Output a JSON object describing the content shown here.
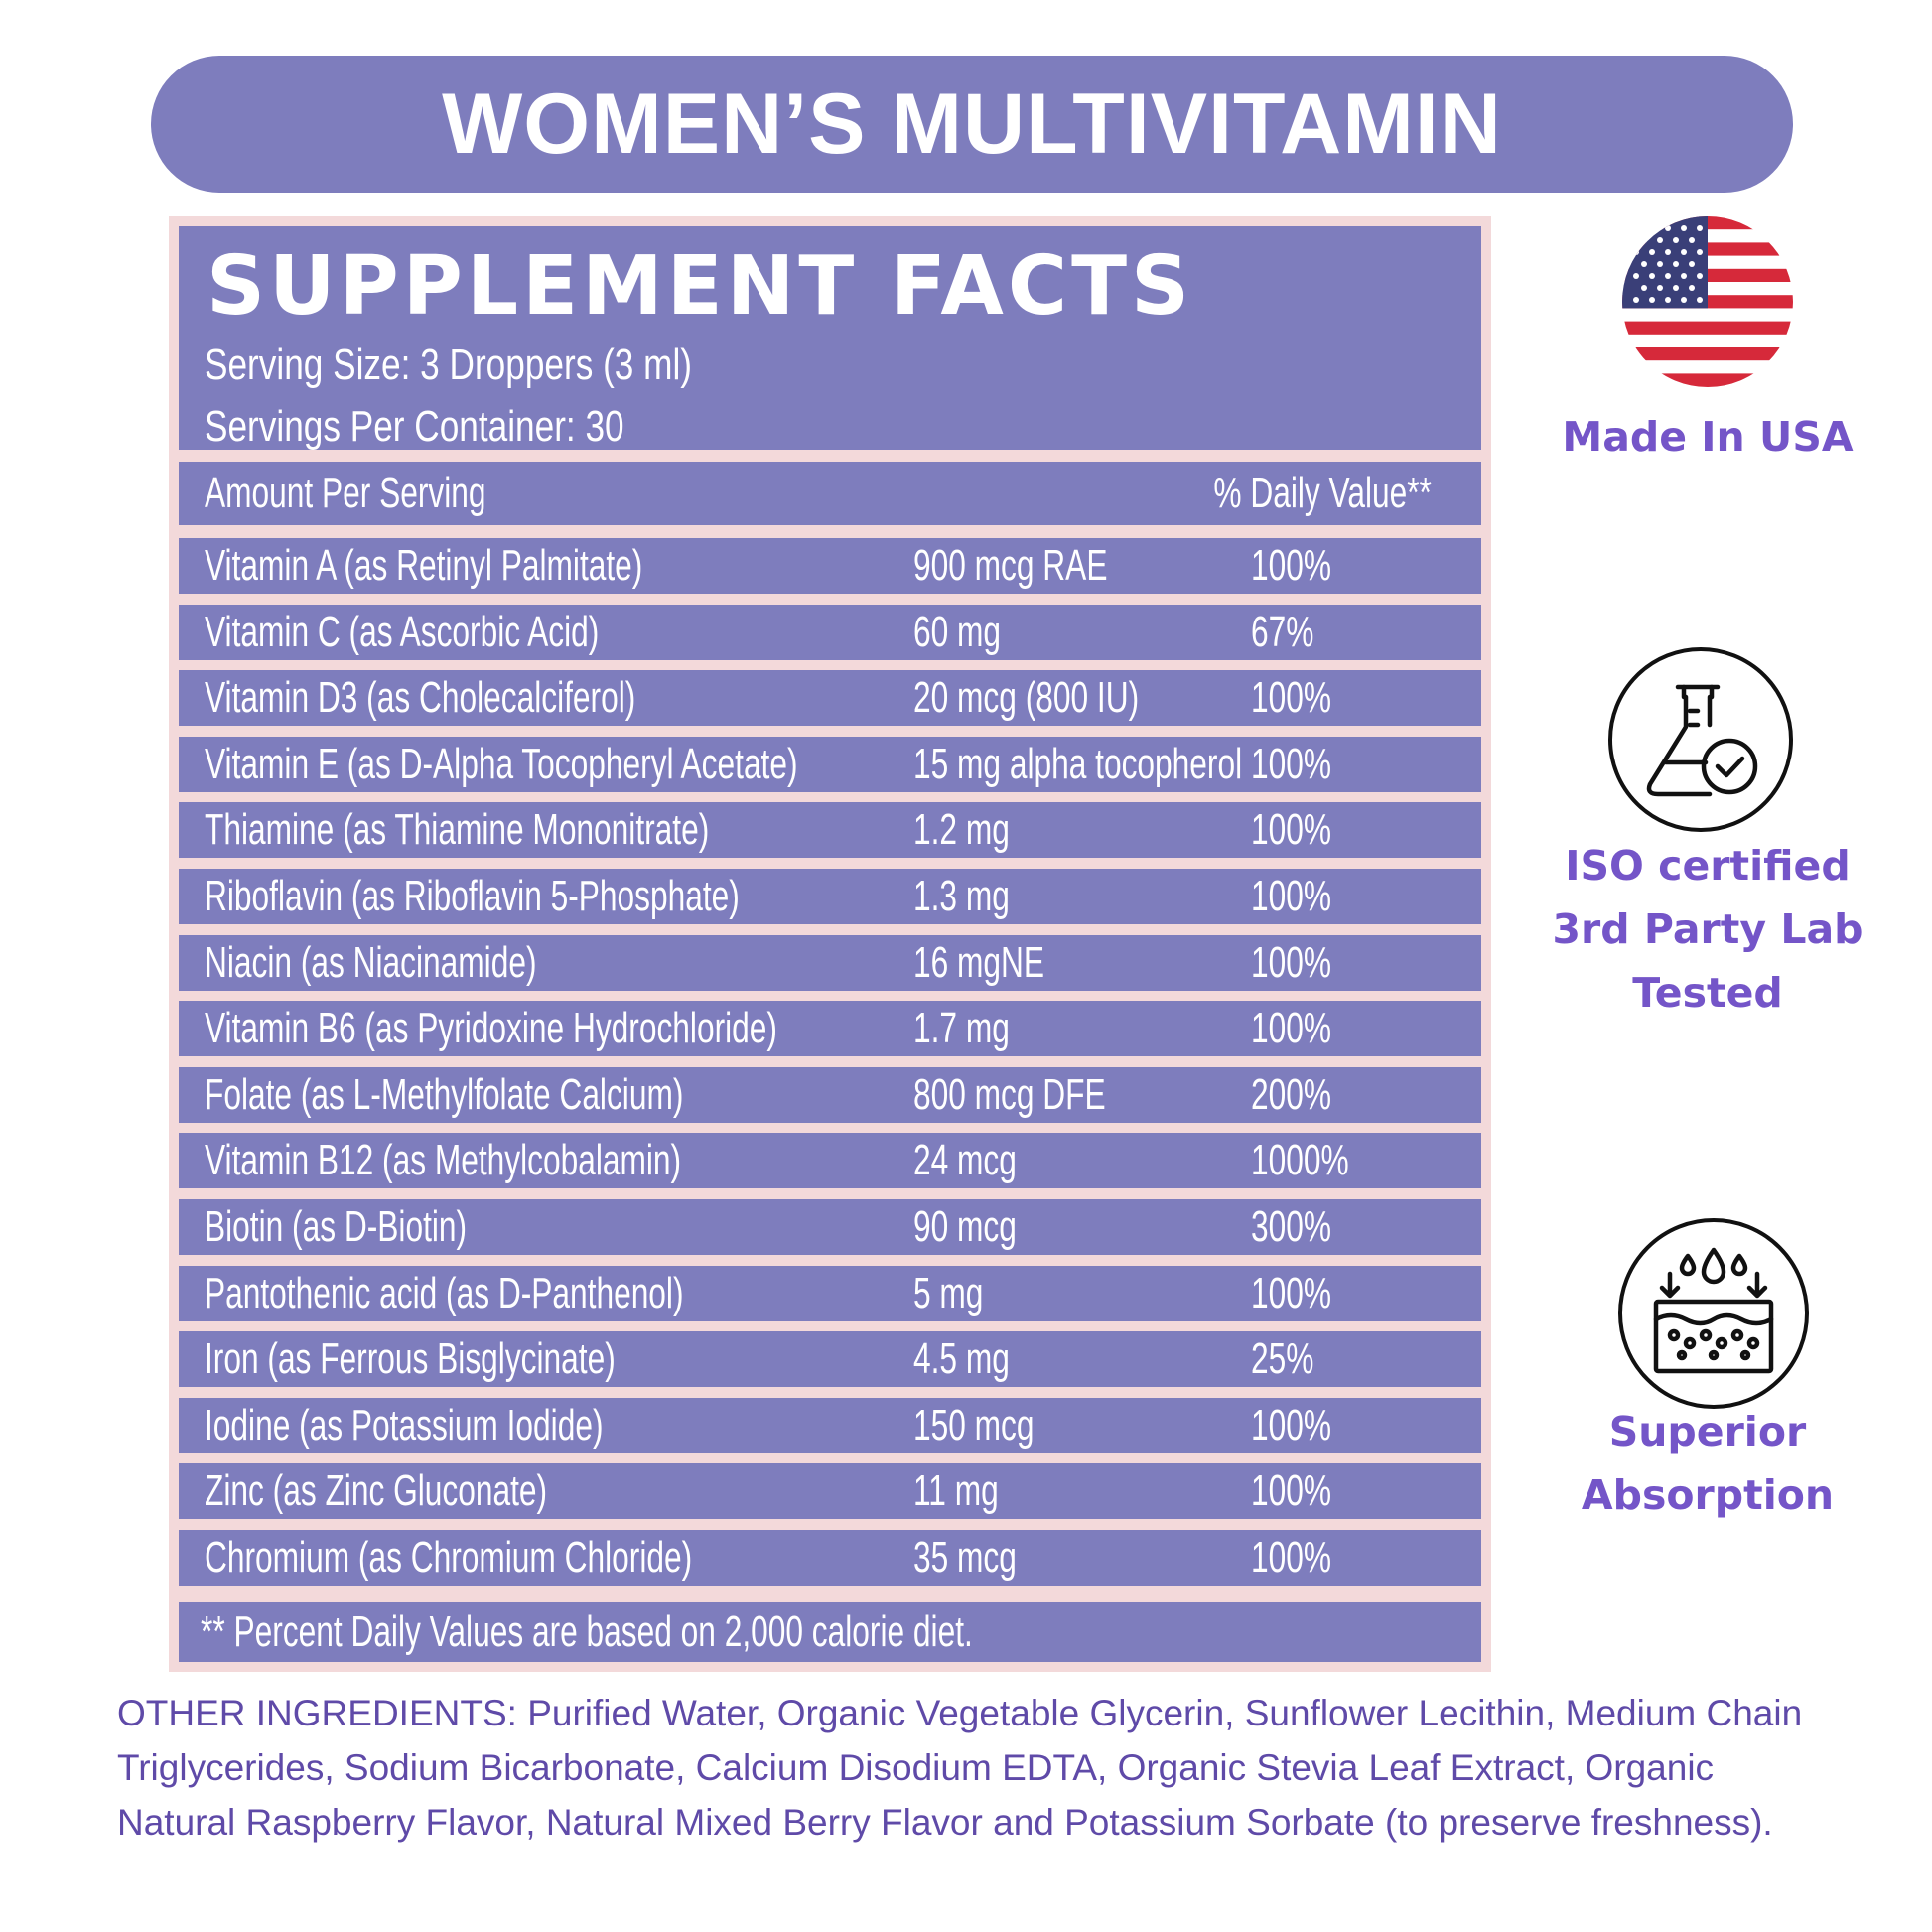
{
  "banner": {
    "title": "WOMEN’S MULTIVITAMIN"
  },
  "facts": {
    "title": "SUPPLEMENT FACTS",
    "serving_size": "Serving Size: 3 Droppers (3 ml)",
    "servings_per_container": "Servings Per Container: 30",
    "header_left": "Amount Per Serving",
    "header_right": "% Daily Value**",
    "rows": [
      {
        "name": "Vitamin A (as Retinyl Palmitate)",
        "amount": "900 mcg RAE",
        "dv": "100%"
      },
      {
        "name": "Vitamin C (as Ascorbic Acid)",
        "amount": "60 mg",
        "dv": "67%"
      },
      {
        "name": "Vitamin D3 (as Cholecalciferol)",
        "amount": "20 mcg (800 IU)",
        "dv": "100%"
      },
      {
        "name": "Vitamin E (as D-Alpha Tocopheryl Acetate)",
        "amount": "15 mg alpha tocopherol",
        "dv": "100%"
      },
      {
        "name": "Thiamine (as Thiamine Mononitrate)",
        "amount": "1.2 mg",
        "dv": "100%"
      },
      {
        "name": "Riboflavin (as Riboflavin 5-Phosphate)",
        "amount": "1.3 mg",
        "dv": "100%"
      },
      {
        "name": "Niacin (as Niacinamide)",
        "amount": "16 mgNE",
        "dv": "100%"
      },
      {
        "name": "Vitamin B6 (as Pyridoxine Hydrochloride)",
        "amount": "1.7 mg",
        "dv": "100%"
      },
      {
        "name": "Folate (as L-Methylfolate Calcium)",
        "amount": "800 mcg DFE",
        "dv": "200%"
      },
      {
        "name": "Vitamin B12 (as Methylcobalamin)",
        "amount": "24 mcg",
        "dv": "1000%"
      },
      {
        "name": "Biotin (as D-Biotin)",
        "amount": "90 mcg",
        "dv": "300%"
      },
      {
        "name": "Pantothenic acid (as D-Panthenol)",
        "amount": "5 mg",
        "dv": "100%"
      },
      {
        "name": "Iron (as Ferrous Bisglycinate)",
        "amount": "4.5 mg",
        "dv": "25%"
      },
      {
        "name": "Iodine (as Potassium Iodide)",
        "amount": "150 mcg",
        "dv": "100%"
      },
      {
        "name": "Zinc (as Zinc Gluconate)",
        "amount": "11 mg",
        "dv": "100%"
      },
      {
        "name": "Chromium (as Chromium Chloride)",
        "amount": "35 mcg",
        "dv": "100%"
      }
    ],
    "footnote": "** Percent Daily Values are based on 2,000 calorie diet."
  },
  "badges": {
    "usa": {
      "icon": "usa-flag-icon",
      "line1": "Made In USA"
    },
    "iso": {
      "icon": "lab-flask-check-icon",
      "line1": "ISO certified",
      "line2": "3rd Party Lab",
      "line3": "Tested"
    },
    "absorption": {
      "icon": "skin-absorption-icon",
      "line1": "Superior",
      "line2": "Absorption"
    }
  },
  "other_ingredients": "OTHER INGREDIENTS: Purified Water, Organic Vegetable Glycerin, Sunflower Lecithin, Medium Chain Triglycerides, Sodium Bicarbonate, Calcium Disodium EDTA, Organic Stevia Leaf Extract, Organic Natural Raspberry Flavor, Natural Mixed Berry Flavor and Potassium Sorbate (to preserve freshness).",
  "colors": {
    "panel": "#7e7dbd",
    "frame": "#f3d9da",
    "badge_text": "#7455c8",
    "ingredients_text": "#5f4aa8"
  }
}
